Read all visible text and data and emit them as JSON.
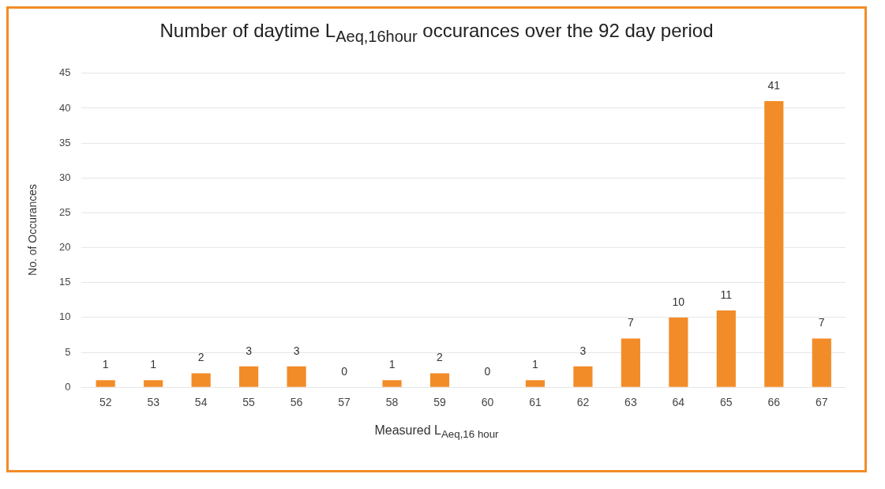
{
  "chart_data": {
    "type": "bar",
    "title": "Number of daytime L$_{Aeq,16hour}$ occurances over the 92 day period",
    "xlabel": "Measured L$_{Aeq,16 hour}$",
    "ylabel": "No. of Occurances",
    "categories": [
      "52",
      "53",
      "54",
      "55",
      "56",
      "57",
      "58",
      "59",
      "60",
      "61",
      "62",
      "63",
      "64",
      "65",
      "66",
      "67"
    ],
    "values": [
      1,
      1,
      2,
      3,
      3,
      0,
      1,
      2,
      0,
      1,
      3,
      7,
      10,
      11,
      41,
      7
    ],
    "color": "#f28c28",
    "ylim": [
      0,
      45
    ],
    "yticks": [
      0,
      5,
      10,
      15,
      20,
      25,
      30,
      35,
      40,
      45
    ],
    "grid": "y",
    "data_labels": true
  }
}
